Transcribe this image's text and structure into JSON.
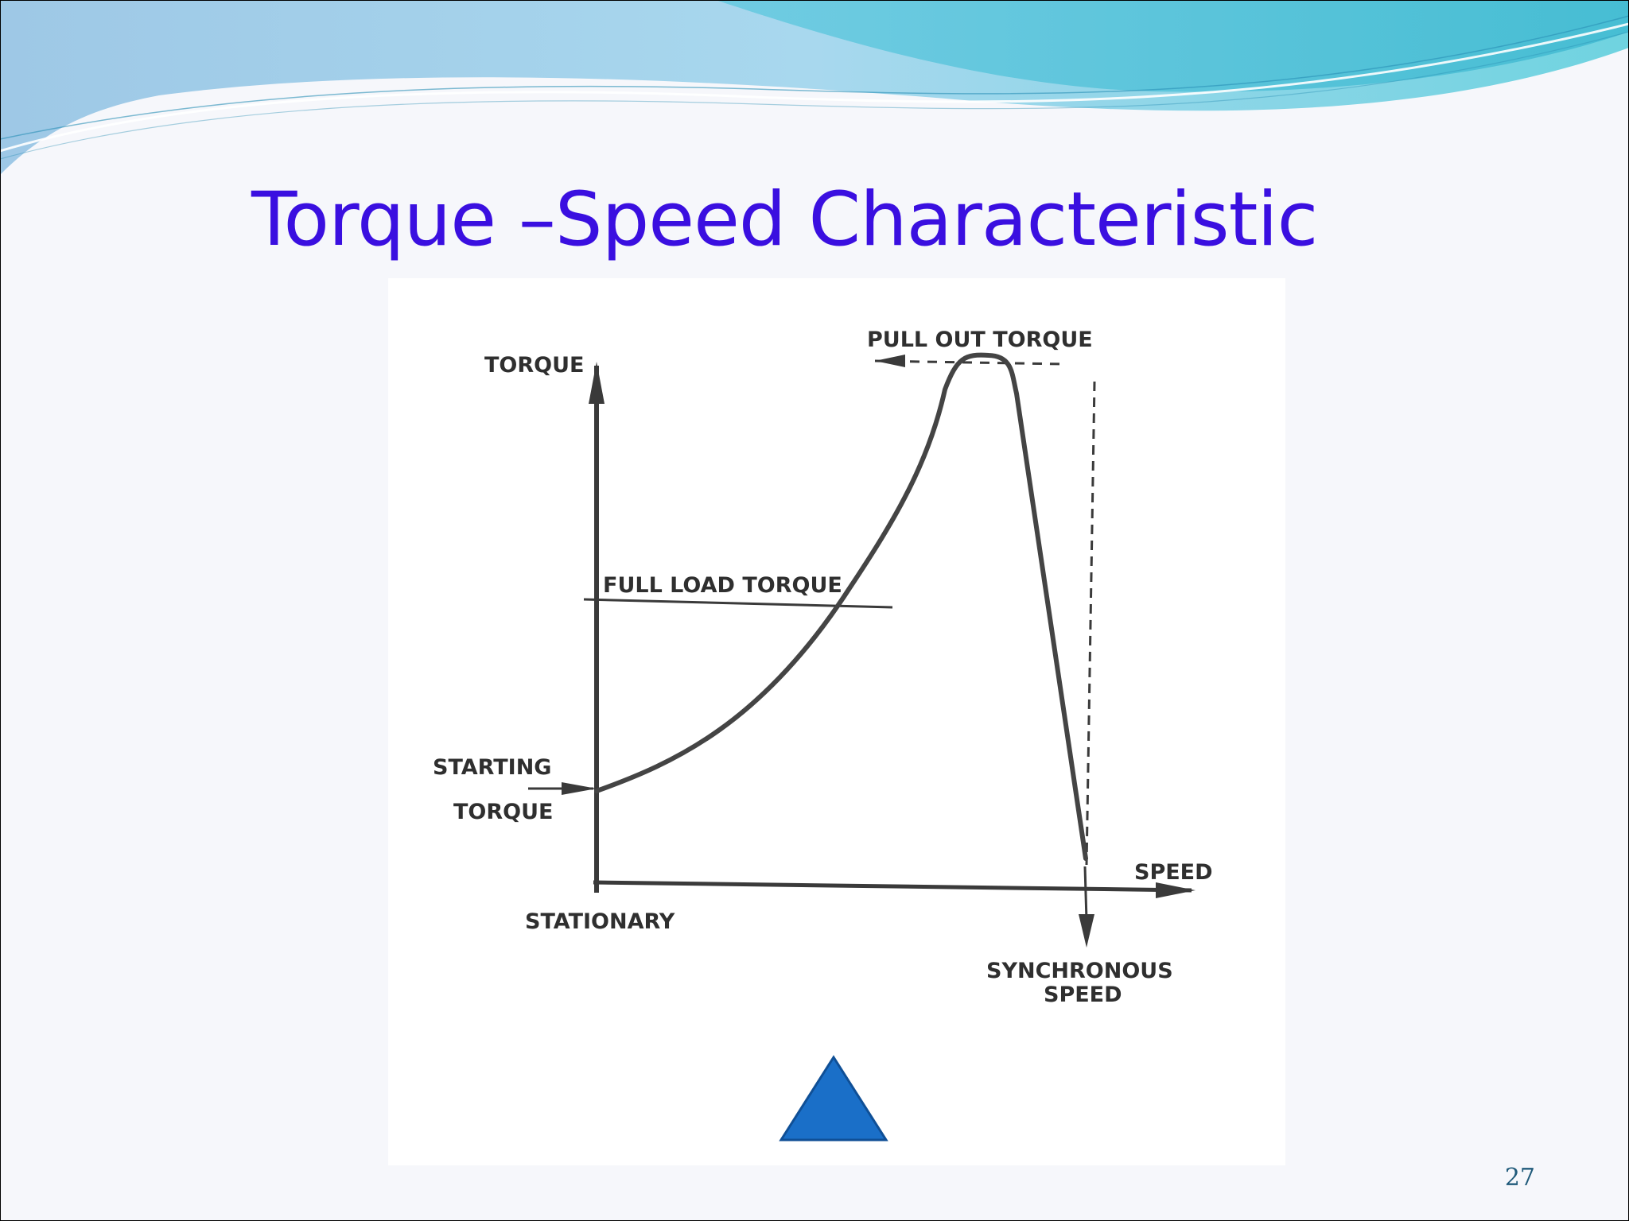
{
  "slide": {
    "title": "Torque –Speed Characteristic",
    "page_number": "27",
    "theme_colors": {
      "title": "#3a0fe0",
      "wave_light": "#8fe0ea",
      "wave_dark": "#55c6d9",
      "nav_triangle": "#1a6fc8"
    }
  },
  "diagram": {
    "labels": {
      "torque_axis": "TORQUE",
      "speed_axis": "SPEED",
      "pull_out_torque": "PULL OUT TORQUE",
      "full_load_torque": "FULL LOAD TORQUE",
      "starting_torque_line1": "STARTING",
      "starting_torque_line2": "TORQUE",
      "stationary": "STATIONARY",
      "synchronous_speed_line1": "SYNCHRONOUS",
      "synchronous_speed_line2": "SPEED"
    }
  },
  "nav": {
    "icon": "triangle-up-icon"
  }
}
